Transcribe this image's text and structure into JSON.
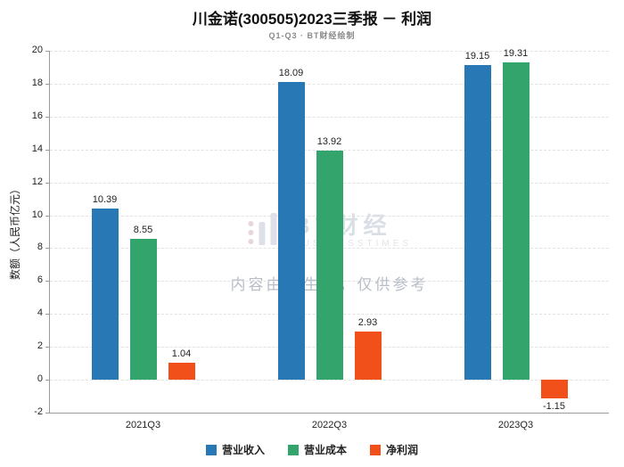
{
  "title": "川金诺(300505)2023三季报 － 利润",
  "subtitle": "Q1-Q3 · BT财经绘制",
  "watermark": {
    "brand": "BT财经",
    "brand_sub": "BUSINESSTIMES",
    "notice": "内容由AI生成，仅供参考"
  },
  "chart_data": {
    "type": "bar",
    "categories": [
      "2021Q3",
      "2022Q3",
      "2023Q3"
    ],
    "series": [
      {
        "name": "营业收入",
        "color": "#2878B5",
        "values": [
          10.39,
          18.09,
          19.15
        ]
      },
      {
        "name": "营业成本",
        "color": "#33A56C",
        "values": [
          8.55,
          13.92,
          19.31
        ]
      },
      {
        "name": "净利润",
        "color": "#F2501B",
        "values": [
          1.04,
          2.93,
          -1.15
        ]
      }
    ],
    "title": "川金诺(300505)2023三季报 － 利润",
    "xlabel": "",
    "ylabel": "数额（人民币亿元）",
    "ylim": [
      -2,
      20
    ],
    "ytick_step": 2,
    "grid": true,
    "legend_position": "bottom"
  }
}
